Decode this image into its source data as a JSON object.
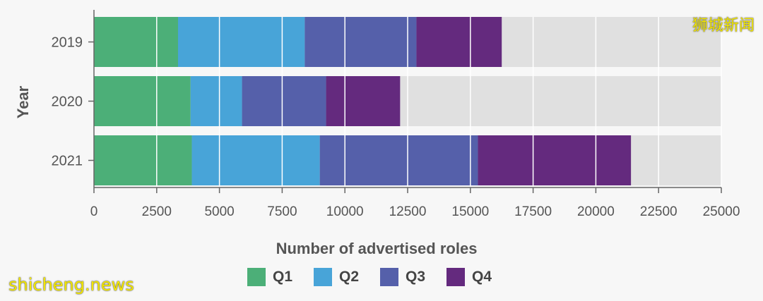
{
  "chart_data": {
    "type": "bar",
    "orientation": "horizontal",
    "stacked": true,
    "title": "",
    "xlabel": "Number of advertised roles",
    "ylabel": "Year",
    "xlim": [
      0,
      25000
    ],
    "x_ticks": [
      "0",
      "2500",
      "5000",
      "7500",
      "10000",
      "12500",
      "15000",
      "17500",
      "20000",
      "22500",
      "25000"
    ],
    "categories": [
      "2019",
      "2020",
      "2021"
    ],
    "series": [
      {
        "name": "Q1",
        "color": "#4caf78",
        "values": [
          3350,
          3850,
          3900
        ]
      },
      {
        "name": "Q2",
        "color": "#48a4d8",
        "values": [
          5050,
          2050,
          5100
        ]
      },
      {
        "name": "Q3",
        "color": "#5560aa",
        "values": [
          4450,
          3350,
          6300
        ]
      },
      {
        "name": "Q4",
        "color": "#642a7e",
        "values": [
          3400,
          2950,
          6100
        ]
      }
    ],
    "background_bar_color": "#e0e0e0",
    "grid": true,
    "legend_position": "bottom"
  },
  "watermarks": {
    "top_right": "狮城新闻",
    "bottom_left": "shicheng.news"
  }
}
